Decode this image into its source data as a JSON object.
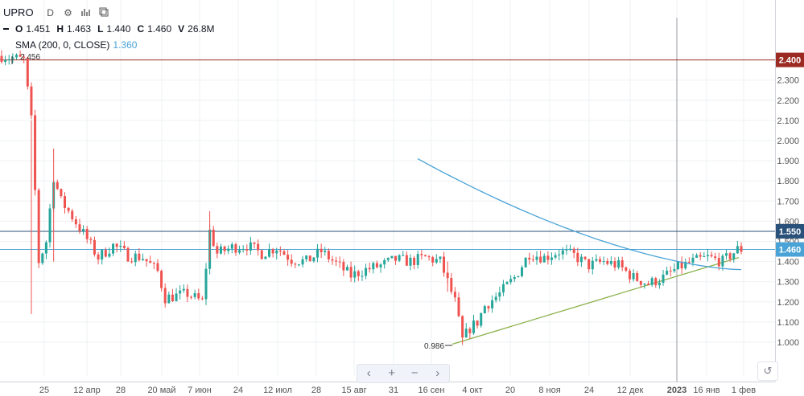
{
  "header": {
    "symbol": "UPRO",
    "interval": "D",
    "icons": [
      "gear-icon",
      "bar-chart-icon",
      "compare-icon"
    ],
    "ohlcv": {
      "o_label": "O",
      "o_value": "1.451",
      "h_label": "H",
      "h_value": "1.463",
      "l_label": "L",
      "l_value": "1.440",
      "c_label": "C",
      "c_value": "1.460",
      "v_label": "V",
      "v_value": "26.8M"
    },
    "indicator": {
      "label": "SMA (200, 0, CLOSE)",
      "value": "1.360"
    }
  },
  "toolbar": {
    "left": "‹",
    "plus": "+",
    "minus": "−",
    "right": "›",
    "reset": "↺"
  },
  "colors": {
    "up": "#26a69a",
    "down": "#ef5350",
    "sma": "#4aa3d6",
    "trend": "#8bb04a",
    "hline_red": "#9b2b22",
    "hline_blue": "#2a5179",
    "axis_text": "#555555",
    "grid": "#eef0f3"
  },
  "chart_data": {
    "type": "candlestick",
    "ylim": [
      0.94,
      2.52
    ],
    "y_ticks": [
      "2.300",
      "2.200",
      "2.100",
      "2.000",
      "1.900",
      "1.800",
      "1.700",
      "1.600",
      "1.500",
      "1.400",
      "1.300",
      "1.200",
      "1.100",
      "1.000"
    ],
    "x_labels": [
      "25",
      "12 апр",
      "28",
      "20 май",
      "7 июн",
      "24",
      "12 июл",
      "28",
      "15 авг",
      "31",
      "16 сен",
      "4 окт",
      "20",
      "8 ноя",
      "24",
      "12 дек",
      "2023",
      "16 янв",
      "1 фев"
    ],
    "price_labels": [
      {
        "value": 2.4,
        "text": "2.400",
        "color": "#9b2b22"
      },
      {
        "value": 1.55,
        "text": "1.550",
        "color": "#2a5179"
      },
      {
        "value": 1.46,
        "text": "1.460",
        "color": "#4aa3d6"
      }
    ],
    "horizontal_lines": [
      {
        "value": 2.4,
        "color": "#9b2b22"
      },
      {
        "value": 1.55,
        "color": "#2a5179"
      },
      {
        "value": 1.46,
        "color": "#4aa3d6"
      }
    ],
    "annotations": [
      {
        "text": "2.456",
        "value": 2.456
      },
      {
        "text": "0.986",
        "value": 0.986
      }
    ],
    "trendline": [
      [
        0,
        0.99
      ],
      [
        0.6,
        1.42
      ]
    ],
    "sma": {
      "name": "SMA (200, 0, CLOSE)",
      "start": 0.4,
      "end": 1.36,
      "first": 1.91,
      "last": 1.36
    },
    "anchors": [
      [
        0,
        2.42
      ],
      [
        6,
        2.4
      ],
      [
        8,
        2.1
      ],
      [
        10,
        1.4
      ],
      [
        12,
        1.5
      ],
      [
        14,
        1.82
      ],
      [
        16,
        1.7
      ],
      [
        18,
        1.65
      ],
      [
        22,
        1.54
      ],
      [
        26,
        1.42
      ],
      [
        30,
        1.48
      ],
      [
        34,
        1.43
      ],
      [
        38,
        1.42
      ],
      [
        42,
        1.35
      ],
      [
        44,
        1.22
      ],
      [
        50,
        1.24
      ],
      [
        54,
        1.2
      ],
      [
        56,
        1.55
      ],
      [
        58,
        1.44
      ],
      [
        62,
        1.47
      ],
      [
        66,
        1.48
      ],
      [
        70,
        1.44
      ],
      [
        74,
        1.47
      ],
      [
        78,
        1.41
      ],
      [
        82,
        1.4
      ],
      [
        86,
        1.45
      ],
      [
        90,
        1.39
      ],
      [
        94,
        1.33
      ],
      [
        98,
        1.36
      ],
      [
        102,
        1.38
      ],
      [
        106,
        1.41
      ],
      [
        110,
        1.4
      ],
      [
        114,
        1.42
      ],
      [
        118,
        1.4
      ],
      [
        120,
        1.3
      ],
      [
        122,
        1.2
      ],
      [
        124,
        1.01
      ],
      [
        126,
        1.07
      ],
      [
        128,
        1.1
      ],
      [
        130,
        1.18
      ],
      [
        134,
        1.24
      ],
      [
        138,
        1.32
      ],
      [
        142,
        1.44
      ],
      [
        146,
        1.42
      ],
      [
        150,
        1.45
      ],
      [
        154,
        1.43
      ],
      [
        158,
        1.38
      ],
      [
        162,
        1.4
      ],
      [
        166,
        1.38
      ],
      [
        170,
        1.32
      ],
      [
        174,
        1.29
      ],
      [
        178,
        1.32
      ],
      [
        182,
        1.37
      ],
      [
        186,
        1.4
      ],
      [
        190,
        1.42
      ],
      [
        194,
        1.4
      ],
      [
        198,
        1.46
      ]
    ]
  }
}
